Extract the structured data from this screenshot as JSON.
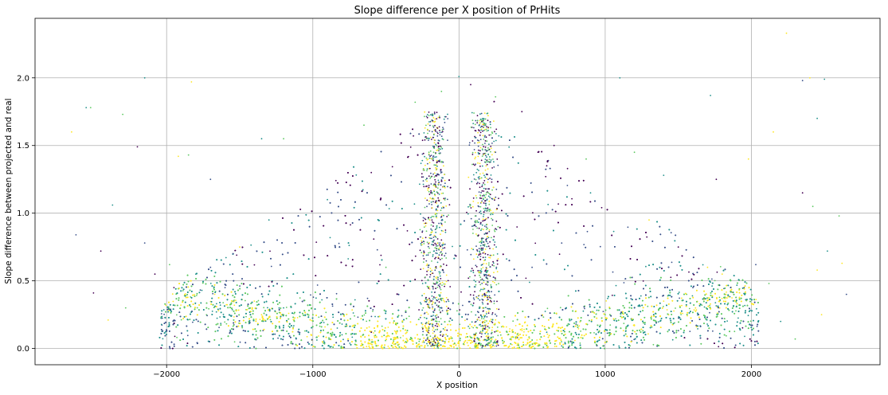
{
  "chart_data": {
    "type": "scatter",
    "title": "Slope difference per X position of PrHits",
    "xlabel": "X position",
    "ylabel": "Slope difference between projected and real",
    "xlim": [
      -2900,
      2880
    ],
    "ylim": [
      -0.12,
      2.44
    ],
    "xticks": [
      -2000,
      -1000,
      0,
      1000,
      2000
    ],
    "xtick_labels": [
      "−2000",
      "−1000",
      "0",
      "1000",
      "2000"
    ],
    "yticks": [
      0.0,
      0.5,
      1.0,
      1.5,
      2.0
    ],
    "ytick_labels": [
      "0.0",
      "0.5",
      "1.0",
      "1.5",
      "2.0"
    ],
    "grid": true,
    "colormap": [
      "#440154",
      "#3b528b",
      "#21918c",
      "#5ec962",
      "#fde725"
    ],
    "series": [
      {
        "description": "Dense cloud of hits, concentrated near y≈0.1 around x=0, spreading to y≈0.5 at |x|≈1800, with vertical streaks near x≈−200 and x≈+200 reaching y≈1.8",
        "points": [
          [
            -2650,
            1.6
          ],
          [
            -2550,
            1.78
          ],
          [
            -2520,
            1.78
          ],
          [
            -2300,
            1.73
          ],
          [
            -2150,
            2.0
          ],
          [
            -1830,
            1.97
          ],
          [
            -2200,
            1.49
          ],
          [
            -1920,
            1.42
          ],
          [
            -1850,
            1.43
          ],
          [
            -2370,
            1.06
          ],
          [
            -2450,
            0.72
          ],
          [
            -2620,
            0.84
          ],
          [
            -2500,
            0.41
          ],
          [
            -2400,
            0.21
          ],
          [
            -2280,
            0.3
          ],
          [
            -2150,
            0.78
          ],
          [
            -2080,
            0.55
          ],
          [
            -1980,
            0.62
          ],
          [
            -1700,
            1.25
          ],
          [
            -1350,
            1.55
          ],
          [
            -1200,
            1.55
          ],
          [
            -650,
            1.65
          ],
          [
            -300,
            1.82
          ],
          [
            -120,
            1.9
          ],
          [
            0,
            2.01
          ],
          [
            80,
            1.95
          ],
          [
            250,
            1.86
          ],
          [
            430,
            1.75
          ],
          [
            650,
            1.5
          ],
          [
            870,
            1.4
          ],
          [
            1100,
            2.0
          ],
          [
            1200,
            1.45
          ],
          [
            1400,
            1.28
          ],
          [
            1720,
            1.87
          ],
          [
            1760,
            1.25
          ],
          [
            1980,
            1.4
          ],
          [
            2150,
            1.6
          ],
          [
            2240,
            2.33
          ],
          [
            2350,
            1.98
          ],
          [
            2400,
            2.0
          ],
          [
            2450,
            1.7
          ],
          [
            2500,
            1.99
          ],
          [
            2350,
            1.15
          ],
          [
            2420,
            1.05
          ],
          [
            2600,
            0.98
          ],
          [
            2520,
            0.72
          ],
          [
            2450,
            0.58
          ],
          [
            2620,
            0.63
          ],
          [
            2650,
            0.4
          ],
          [
            2480,
            0.25
          ],
          [
            2300,
            0.07
          ],
          [
            2200,
            0.2
          ],
          [
            2120,
            0.48
          ],
          [
            2030,
            0.62
          ],
          [
            -1800,
            0.55
          ],
          [
            -1700,
            0.6
          ],
          [
            -1600,
            0.45
          ],
          [
            -1400,
            0.35
          ],
          [
            -1200,
            0.3
          ],
          [
            -1000,
            0.25
          ],
          [
            -800,
            0.18
          ],
          [
            -600,
            0.12
          ],
          [
            -400,
            0.08
          ],
          [
            -200,
            0.04
          ],
          [
            0,
            0.02
          ],
          [
            200,
            0.04
          ],
          [
            400,
            0.08
          ],
          [
            600,
            0.12
          ],
          [
            800,
            0.18
          ],
          [
            1000,
            0.25
          ],
          [
            1200,
            0.3
          ],
          [
            1400,
            0.35
          ],
          [
            1600,
            0.45
          ],
          [
            1700,
            0.6
          ],
          [
            1800,
            0.55
          ],
          [
            1950,
            0.45
          ],
          [
            -1950,
            0.45
          ],
          [
            -220,
            1.2
          ],
          [
            -200,
            0.95
          ],
          [
            -240,
            0.7
          ],
          [
            -180,
            1.4
          ],
          [
            200,
            1.25
          ],
          [
            230,
            0.95
          ],
          [
            180,
            0.7
          ],
          [
            250,
            1.45
          ],
          [
            -900,
            1.1
          ],
          [
            -600,
            1.3
          ],
          [
            600,
            1.35
          ],
          [
            900,
            1.15
          ],
          [
            -1300,
            0.95
          ],
          [
            1300,
            0.95
          ],
          [
            -500,
            0.6
          ],
          [
            500,
            0.6
          ],
          [
            -1500,
            0.75
          ],
          [
            1500,
            0.75
          ]
        ]
      }
    ],
    "dense_region": {
      "envelope_x": [
        -2100,
        -1900,
        -1750,
        -1500,
        -1200,
        -900,
        -600,
        -400,
        -250,
        -150,
        0,
        150,
        250,
        400,
        600,
        900,
        1200,
        1500,
        1750,
        1900,
        2050
      ],
      "envelope_ymax": [
        0.15,
        0.45,
        0.6,
        0.75,
        1.0,
        1.25,
        1.45,
        1.65,
        1.8,
        1.75,
        1.1,
        1.8,
        1.85,
        1.65,
        1.45,
        1.3,
        1.05,
        0.85,
        0.65,
        0.55,
        0.3
      ]
    }
  }
}
